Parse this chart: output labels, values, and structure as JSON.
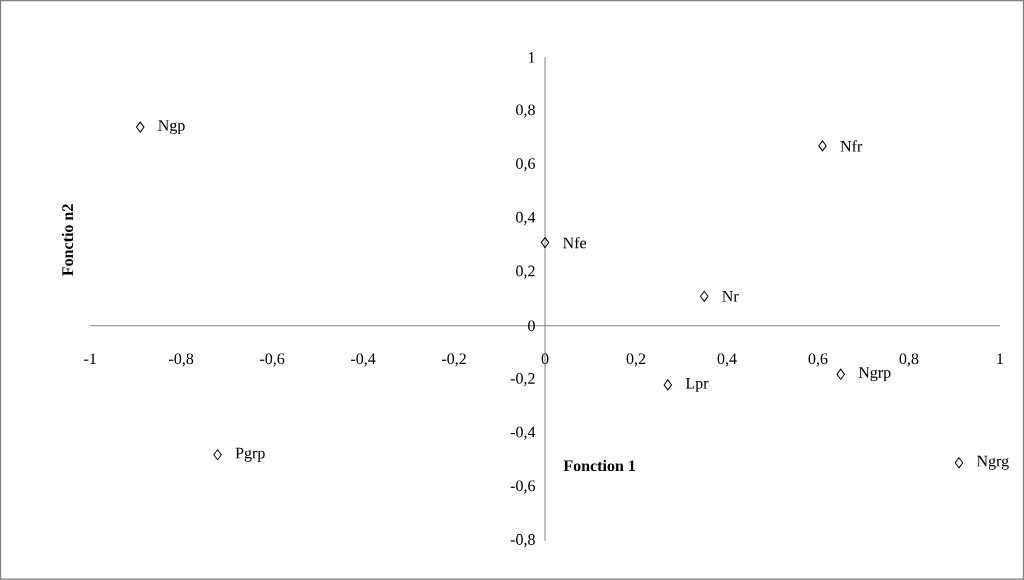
{
  "chart_data": {
    "type": "scatter",
    "xlabel": "Fonction 1",
    "ylabel": "Fonctio n2",
    "series": [
      {
        "color": "#000000",
        "x": [
          -0.89,
          0.61,
          0.0,
          0.35,
          0.27,
          0.65,
          0.91,
          -0.72
        ],
        "values": [
          0.74,
          0.67,
          0.31,
          0.11,
          -0.22,
          -0.18,
          -0.51,
          -0.48
        ]
      }
    ],
    "annotations": [
      {
        "text": "Ngp",
        "x": -0.89,
        "y": 0.74
      },
      {
        "text": "Nfr",
        "x": 0.61,
        "y": 0.67
      },
      {
        "text": "Nfe",
        "x": 0.0,
        "y": 0.31
      },
      {
        "text": "Nr",
        "x": 0.35,
        "y": 0.11
      },
      {
        "text": "Lpr",
        "x": 0.27,
        "y": -0.22
      },
      {
        "text": "Ngrp",
        "x": 0.65,
        "y": -0.18
      },
      {
        "text": "Ngrg",
        "x": 0.91,
        "y": -0.51
      },
      {
        "text": "Pgrp",
        "x": -0.72,
        "y": -0.48
      }
    ],
    "xlim": [
      -1,
      1
    ],
    "ylim": [
      -0.8,
      1
    ],
    "xticks": [
      -1,
      {
        "value": -0.8,
        "label": "-0,8"
      },
      {
        "value": -0.6,
        "label": "-0,6"
      },
      {
        "value": -0.4,
        "label": "-0,4"
      },
      {
        "value": -0.2,
        "label": "-0,2"
      },
      0,
      {
        "value": 0.2,
        "label": "0,2"
      },
      {
        "value": 0.4,
        "label": "0,4"
      },
      {
        "value": 0.6,
        "label": "0,6"
      },
      {
        "value": 0.8,
        "label": "0,8"
      },
      1
    ],
    "yticks": [
      {
        "value": -0.8,
        "label": "-0,8"
      },
      {
        "value": -0.6,
        "label": "-0,6"
      },
      {
        "value": -0.4,
        "label": "-0,4"
      },
      {
        "value": -0.2,
        "label": "-0,2"
      },
      0,
      {
        "value": 0.2,
        "label": "0,2"
      },
      {
        "value": 0.4,
        "label": "0,4"
      },
      {
        "value": 0.6,
        "label": "0,6"
      },
      {
        "value": 0.8,
        "label": "0,8"
      },
      1
    ],
    "marker": "diamond",
    "grid": false
  }
}
